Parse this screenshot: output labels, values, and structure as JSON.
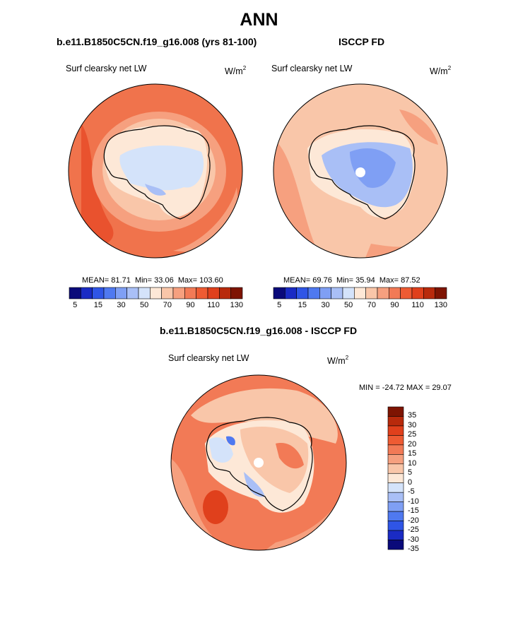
{
  "page": {
    "title": "ANN"
  },
  "panels": [
    {
      "id": "model",
      "title": "b.e11.B1850C5CN.f19_g16.008 (yrs 81-100)",
      "variable": "Surf clearsky net LW",
      "units_base": "W/m",
      "units_exp": "2",
      "stats": {
        "mean_label": "MEAN=",
        "mean": "81.71",
        "min_label": "Min=",
        "min": "33.06",
        "max_label": "Max=",
        "max": "103.60"
      }
    },
    {
      "id": "obs",
      "title": "ISCCP FD",
      "variable": "Surf clearsky net LW",
      "units_base": "W/m",
      "units_exp": "2",
      "stats": {
        "mean_label": "MEAN=",
        "mean": "69.76",
        "min_label": "Min=",
        "min": "35.94",
        "max_label": "Max=",
        "max": "87.52"
      }
    },
    {
      "id": "diff",
      "title": "b.e11.B1850C5CN.f19_g16.008 - ISCCP FD",
      "variable": "Surf clearsky net LW",
      "units_base": "W/m",
      "units_exp": "2",
      "stats_line": "MIN = -24.72 MAX =  29.07"
    }
  ],
  "colorbar_abs": {
    "colors": [
      "#0a0a7a",
      "#1a2bc4",
      "#2f55e6",
      "#4f79f0",
      "#7f9ff4",
      "#a9bff6",
      "#d4e3fa",
      "#fde8d7",
      "#f9c6a9",
      "#f6a07f",
      "#f27a56",
      "#ee5b33",
      "#e0401c",
      "#b82a0c",
      "#7e1402"
    ],
    "ticks": [
      "5",
      "15",
      "30",
      "50",
      "70",
      "90",
      "110",
      "130"
    ]
  },
  "colorbar_diff": {
    "colors": [
      "#7e1402",
      "#b82a0c",
      "#e0401c",
      "#ee5b33",
      "#f27a56",
      "#f6a07f",
      "#f9c6a9",
      "#fde8d7",
      "#d4e3fa",
      "#a9bff6",
      "#7f9ff4",
      "#4f79f0",
      "#2f55e6",
      "#1a2bc4",
      "#0a0a7a"
    ],
    "ticks": [
      "35",
      "30",
      "25",
      "20",
      "15",
      "10",
      "5",
      "0",
      "-5",
      "-10",
      "-15",
      "-20",
      "-25",
      "-30",
      "-35"
    ]
  },
  "chart_data": [
    {
      "type": "heatmap",
      "title": "b.e11.B1850C5CN.f19_g16.008 (yrs 81-100)",
      "subtitle": "Surf clearsky net LW",
      "units": "W/m^2",
      "projection": "south polar stereographic",
      "mean": 81.71,
      "min": 33.06,
      "max": 103.6,
      "contour_levels": [
        5,
        10,
        15,
        20,
        30,
        40,
        50,
        60,
        70,
        80,
        90,
        100,
        110,
        120,
        130
      ]
    },
    {
      "type": "heatmap",
      "title": "ISCCP FD",
      "subtitle": "Surf clearsky net LW",
      "units": "W/m^2",
      "projection": "south polar stereographic",
      "mean": 69.76,
      "min": 35.94,
      "max": 87.52,
      "contour_levels": [
        5,
        10,
        15,
        20,
        30,
        40,
        50,
        60,
        70,
        80,
        90,
        100,
        110,
        120,
        130
      ]
    },
    {
      "type": "heatmap",
      "title": "b.e11.B1850C5CN.f19_g16.008 - ISCCP FD",
      "subtitle": "Surf clearsky net LW",
      "units": "W/m^2",
      "projection": "south polar stereographic",
      "min": -24.72,
      "max": 29.07,
      "contour_levels": [
        -35,
        -30,
        -25,
        -20,
        -15,
        -10,
        -5,
        0,
        5,
        10,
        15,
        20,
        25,
        30,
        35
      ]
    }
  ]
}
